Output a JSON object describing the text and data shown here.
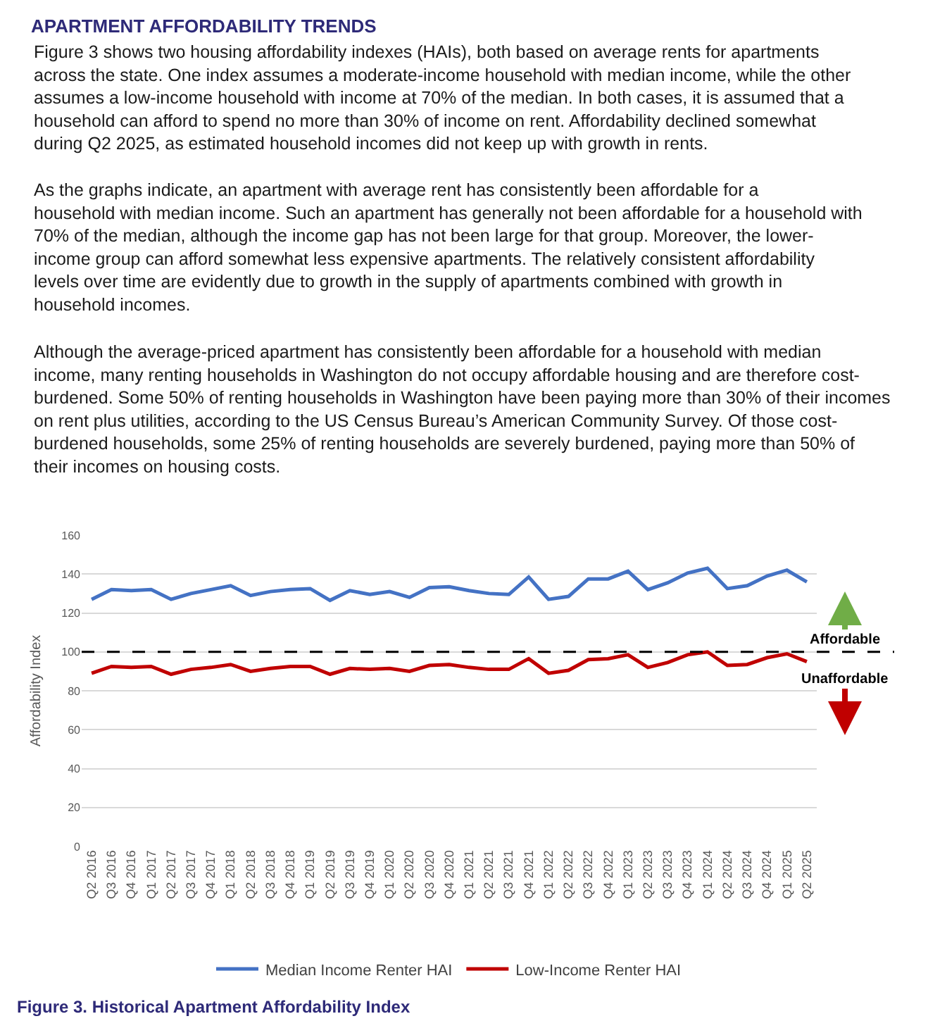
{
  "chart_data": {
    "type": "line",
    "title": "APARTMENT AFFORDABILITY TRENDS",
    "ylabel": "Affordability Index",
    "categories": [
      "Q2 2016",
      "Q3 2016",
      "Q4 2016",
      "Q1 2017",
      "Q2 2017",
      "Q3 2017",
      "Q4 2017",
      "Q1 2018",
      "Q2 2018",
      "Q3 2018",
      "Q4 2018",
      "Q1 2019",
      "Q2 2019",
      "Q3 2019",
      "Q4 2019",
      "Q1 2020",
      "Q2 2020",
      "Q3 2020",
      "Q4 2020",
      "Q1 2021",
      "Q2 2021",
      "Q3 2021",
      "Q4 2021",
      "Q1 2022",
      "Q2 2022",
      "Q3 2022",
      "Q4 2022",
      "Q1 2023",
      "Q2 2023",
      "Q3 2023",
      "Q4 2023",
      "Q1 2024",
      "Q2 2024",
      "Q3 2024",
      "Q4 2024",
      "Q1 2025",
      "Q2 2025"
    ],
    "series": [
      {
        "name": "Median Income Renter HAI",
        "color": "#4472c4",
        "values": [
          127,
          132,
          131.5,
          132,
          127,
          130,
          132,
          134,
          129,
          131,
          132,
          132.5,
          126.5,
          131.5,
          129.5,
          131,
          128,
          133,
          133.5,
          131.5,
          130,
          129.5,
          138.5,
          127,
          128.5,
          137.5,
          137.5,
          141.5,
          132,
          135.5,
          140.5,
          143,
          132.5,
          134,
          139,
          142,
          136
        ]
      },
      {
        "name": "Low-Income Renter HAI",
        "color": "#c00000",
        "values": [
          89,
          92.5,
          92,
          92.5,
          88.5,
          91,
          92,
          93.5,
          90,
          91.5,
          92.5,
          92.5,
          88.5,
          91.5,
          91,
          91.5,
          90,
          93,
          93.5,
          92,
          91,
          91,
          96.5,
          89,
          90.5,
          96,
          96.5,
          98.5,
          92,
          94.5,
          98.5,
          100,
          93,
          93.5,
          97,
          99,
          95
        ]
      }
    ],
    "ylim": [
      0,
      160
    ],
    "yticks": [
      0,
      20,
      40,
      60,
      80,
      100,
      120,
      140,
      160
    ],
    "grid": "y",
    "legend": "bottom",
    "marker": "none",
    "line_style": "solid",
    "ref_lines": [
      {
        "axis": "y",
        "value": 100,
        "color": "#000000",
        "line_style": "dashed"
      }
    ],
    "annotations": [
      "Figure 3 shows two housing affordability indexes (HAIs), both based on average rents for apartments across the state. One index assumes a moderate-income household with median income, while the other assumes a low-income household with income at 70% of the median. In both cases, it is assumed that a household can afford to spend no more than 30% of income on rent. Affordability declined somewhat during Q2 2025, as estimated household incomes did not keep up with growth in rents.",
      "As the graphs indicate, an apartment with average rent has consistently been affordable for a household with median income. Such an apartment has generally not been affordable for a household with 70% of the median, although the income gap has not been large for that group. Moreover, the lower-income group can afford somewhat less expensive apartments. The relatively consistent affordability levels over time are evidently due to growth in the supply of apartments combined with growth in household incomes.",
      "Although the average-priced apartment has consistently been affordable for a household with median income, many renting households in Washington do not occupy affordable housing and are therefore cost-burdened. Some 50% of renting households in Washington have been paying more than 30% of their incomes on rent plus utilities, according to the US Census Bureau’s American Community Survey. Of those cost-burdened households, some 25% of renting households are severely burdened, paying more than 50% of their incomes on housing costs.",
      "Affordable",
      "Unaffordable",
      "Figure 3. Historical Apartment Affordability Index"
    ]
  }
}
